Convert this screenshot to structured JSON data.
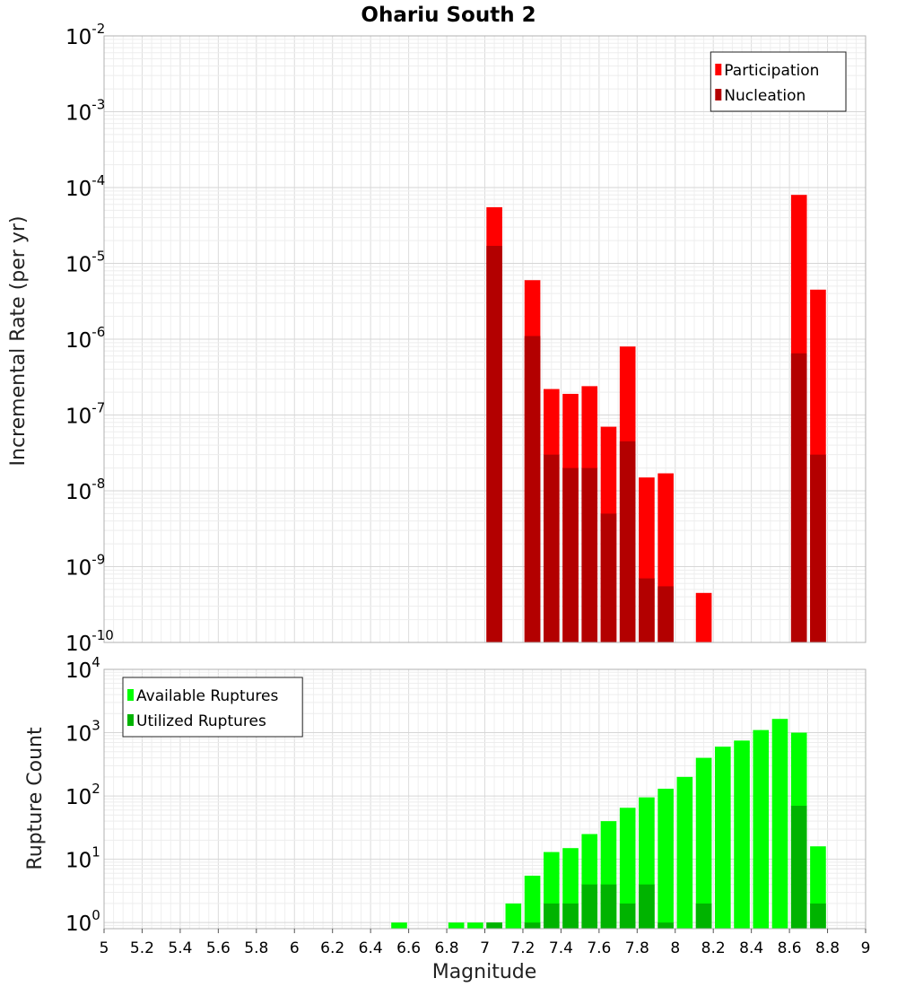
{
  "chart_data": [
    {
      "type": "bar",
      "title": "Ohariu South 2",
      "xlabel": "Magnitude",
      "ylabel": "Incremental Rate (per yr)",
      "yscale": "log",
      "xlim": [
        5,
        9
      ],
      "ylim": [
        1e-10,
        0.01
      ],
      "grid": true,
      "legend_position": "top-right",
      "x_ticks": [
        "5",
        "5.2",
        "5.4",
        "5.6",
        "5.8",
        "6",
        "6.2",
        "6.4",
        "6.6",
        "6.8",
        "7",
        "7.2",
        "7.4",
        "7.6",
        "7.8",
        "8",
        "8.2",
        "8.4",
        "8.6",
        "8.8",
        "9"
      ],
      "y_ticks": [
        {
          "base": "10",
          "exp": "-10"
        },
        {
          "base": "10",
          "exp": "-9"
        },
        {
          "base": "10",
          "exp": "-8"
        },
        {
          "base": "10",
          "exp": "-7"
        },
        {
          "base": "10",
          "exp": "-6"
        },
        {
          "base": "10",
          "exp": "-5"
        },
        {
          "base": "10",
          "exp": "-4"
        },
        {
          "base": "10",
          "exp": "-3"
        },
        {
          "base": "10",
          "exp": "-2"
        }
      ],
      "x": [
        7.05,
        7.25,
        7.35,
        7.45,
        7.55,
        7.65,
        7.75,
        7.85,
        7.95,
        8.15,
        8.65,
        8.75
      ],
      "series": [
        {
          "name": "Participation",
          "color": "#ff0000",
          "values": [
            5.5e-05,
            6e-06,
            2.2e-07,
            1.9e-07,
            2.4e-07,
            7e-08,
            8e-07,
            1.5e-08,
            1.7e-08,
            4.5e-10,
            8e-05,
            4.5e-06
          ]
        },
        {
          "name": "Nucleation",
          "color": "#b30000",
          "values": [
            1.7e-05,
            1.1e-06,
            3e-08,
            2e-08,
            2e-08,
            5e-09,
            4.5e-08,
            7e-10,
            5.5e-10,
            null,
            6.5e-07,
            3e-08
          ]
        }
      ]
    },
    {
      "type": "bar",
      "xlabel": "Magnitude",
      "ylabel": "Rupture Count",
      "yscale": "log",
      "xlim": [
        5,
        9
      ],
      "ylim": [
        0.8,
        10000
      ],
      "grid": true,
      "legend_position": "top-left",
      "y_ticks": [
        {
          "base": "10",
          "exp": "0"
        },
        {
          "base": "10",
          "exp": "1"
        },
        {
          "base": "10",
          "exp": "2"
        },
        {
          "base": "10",
          "exp": "3"
        },
        {
          "base": "10",
          "exp": "4"
        }
      ],
      "x": [
        6.55,
        6.85,
        6.95,
        7.05,
        7.15,
        7.25,
        7.35,
        7.45,
        7.55,
        7.65,
        7.75,
        7.85,
        7.95,
        8.05,
        8.15,
        8.25,
        8.35,
        8.45,
        8.55,
        8.65,
        8.75
      ],
      "series": [
        {
          "name": "Available Ruptures",
          "color": "#00ff00",
          "values": [
            1,
            1,
            1,
            1,
            2,
            5.5,
            13,
            15,
            25,
            40,
            65,
            95,
            130,
            200,
            400,
            600,
            750,
            1100,
            1650,
            1000,
            16
          ]
        },
        {
          "name": "Utilized Ruptures",
          "color": "#00b300",
          "values": [
            null,
            null,
            null,
            1,
            null,
            1,
            2,
            2,
            4,
            4,
            2,
            4,
            1,
            null,
            2,
            null,
            null,
            null,
            null,
            70,
            2
          ]
        }
      ]
    }
  ]
}
